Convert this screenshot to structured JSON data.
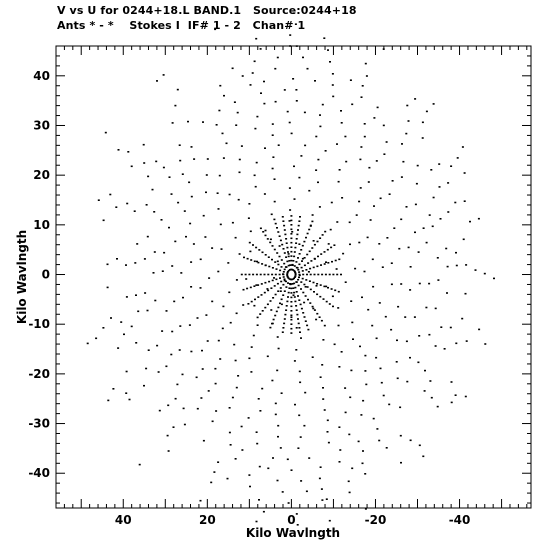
{
  "chart_data": {
    "type": "scatter",
    "title": "V vs U for 0244+18.L BAND.1   Source:0244+18",
    "subtitle": "Ants * - *    Stokes I  IF# 1 - 2   Chan# 1",
    "xlabel": "Kilo Wavlngth",
    "ylabel": "Kilo Wavlngth",
    "xlim": [
      56,
      -57
    ],
    "ylim": [
      -47,
      46
    ],
    "x_ticks": [
      40,
      20,
      0,
      -20,
      -40
    ],
    "y_ticks": [
      40,
      30,
      20,
      10,
      0,
      -10,
      -20,
      -30,
      -40
    ],
    "x_tick_labels": [
      "40",
      "20",
      "0",
      "-20",
      "-40"
    ],
    "y_tick_labels": [
      "40",
      "30",
      "20",
      "10",
      "0",
      "-10",
      "-20",
      "-30",
      "-40"
    ],
    "grid": false,
    "series": [
      {
        "marker_color": "#000000",
        "description_of_pattern": "star-shaped uv-coverage of radial dotted tracks",
        "arm_angles_deg": [
          0,
          17,
          33,
          52,
          70,
          80,
          90,
          100,
          115,
          133,
          150,
          165
        ],
        "arm_tip_radius_kilo_wavelength": 54,
        "inner_minimum_radius_kilo_wavelength": 20,
        "track_spacing_kilo_wavelength": 2.2
      }
    ]
  }
}
